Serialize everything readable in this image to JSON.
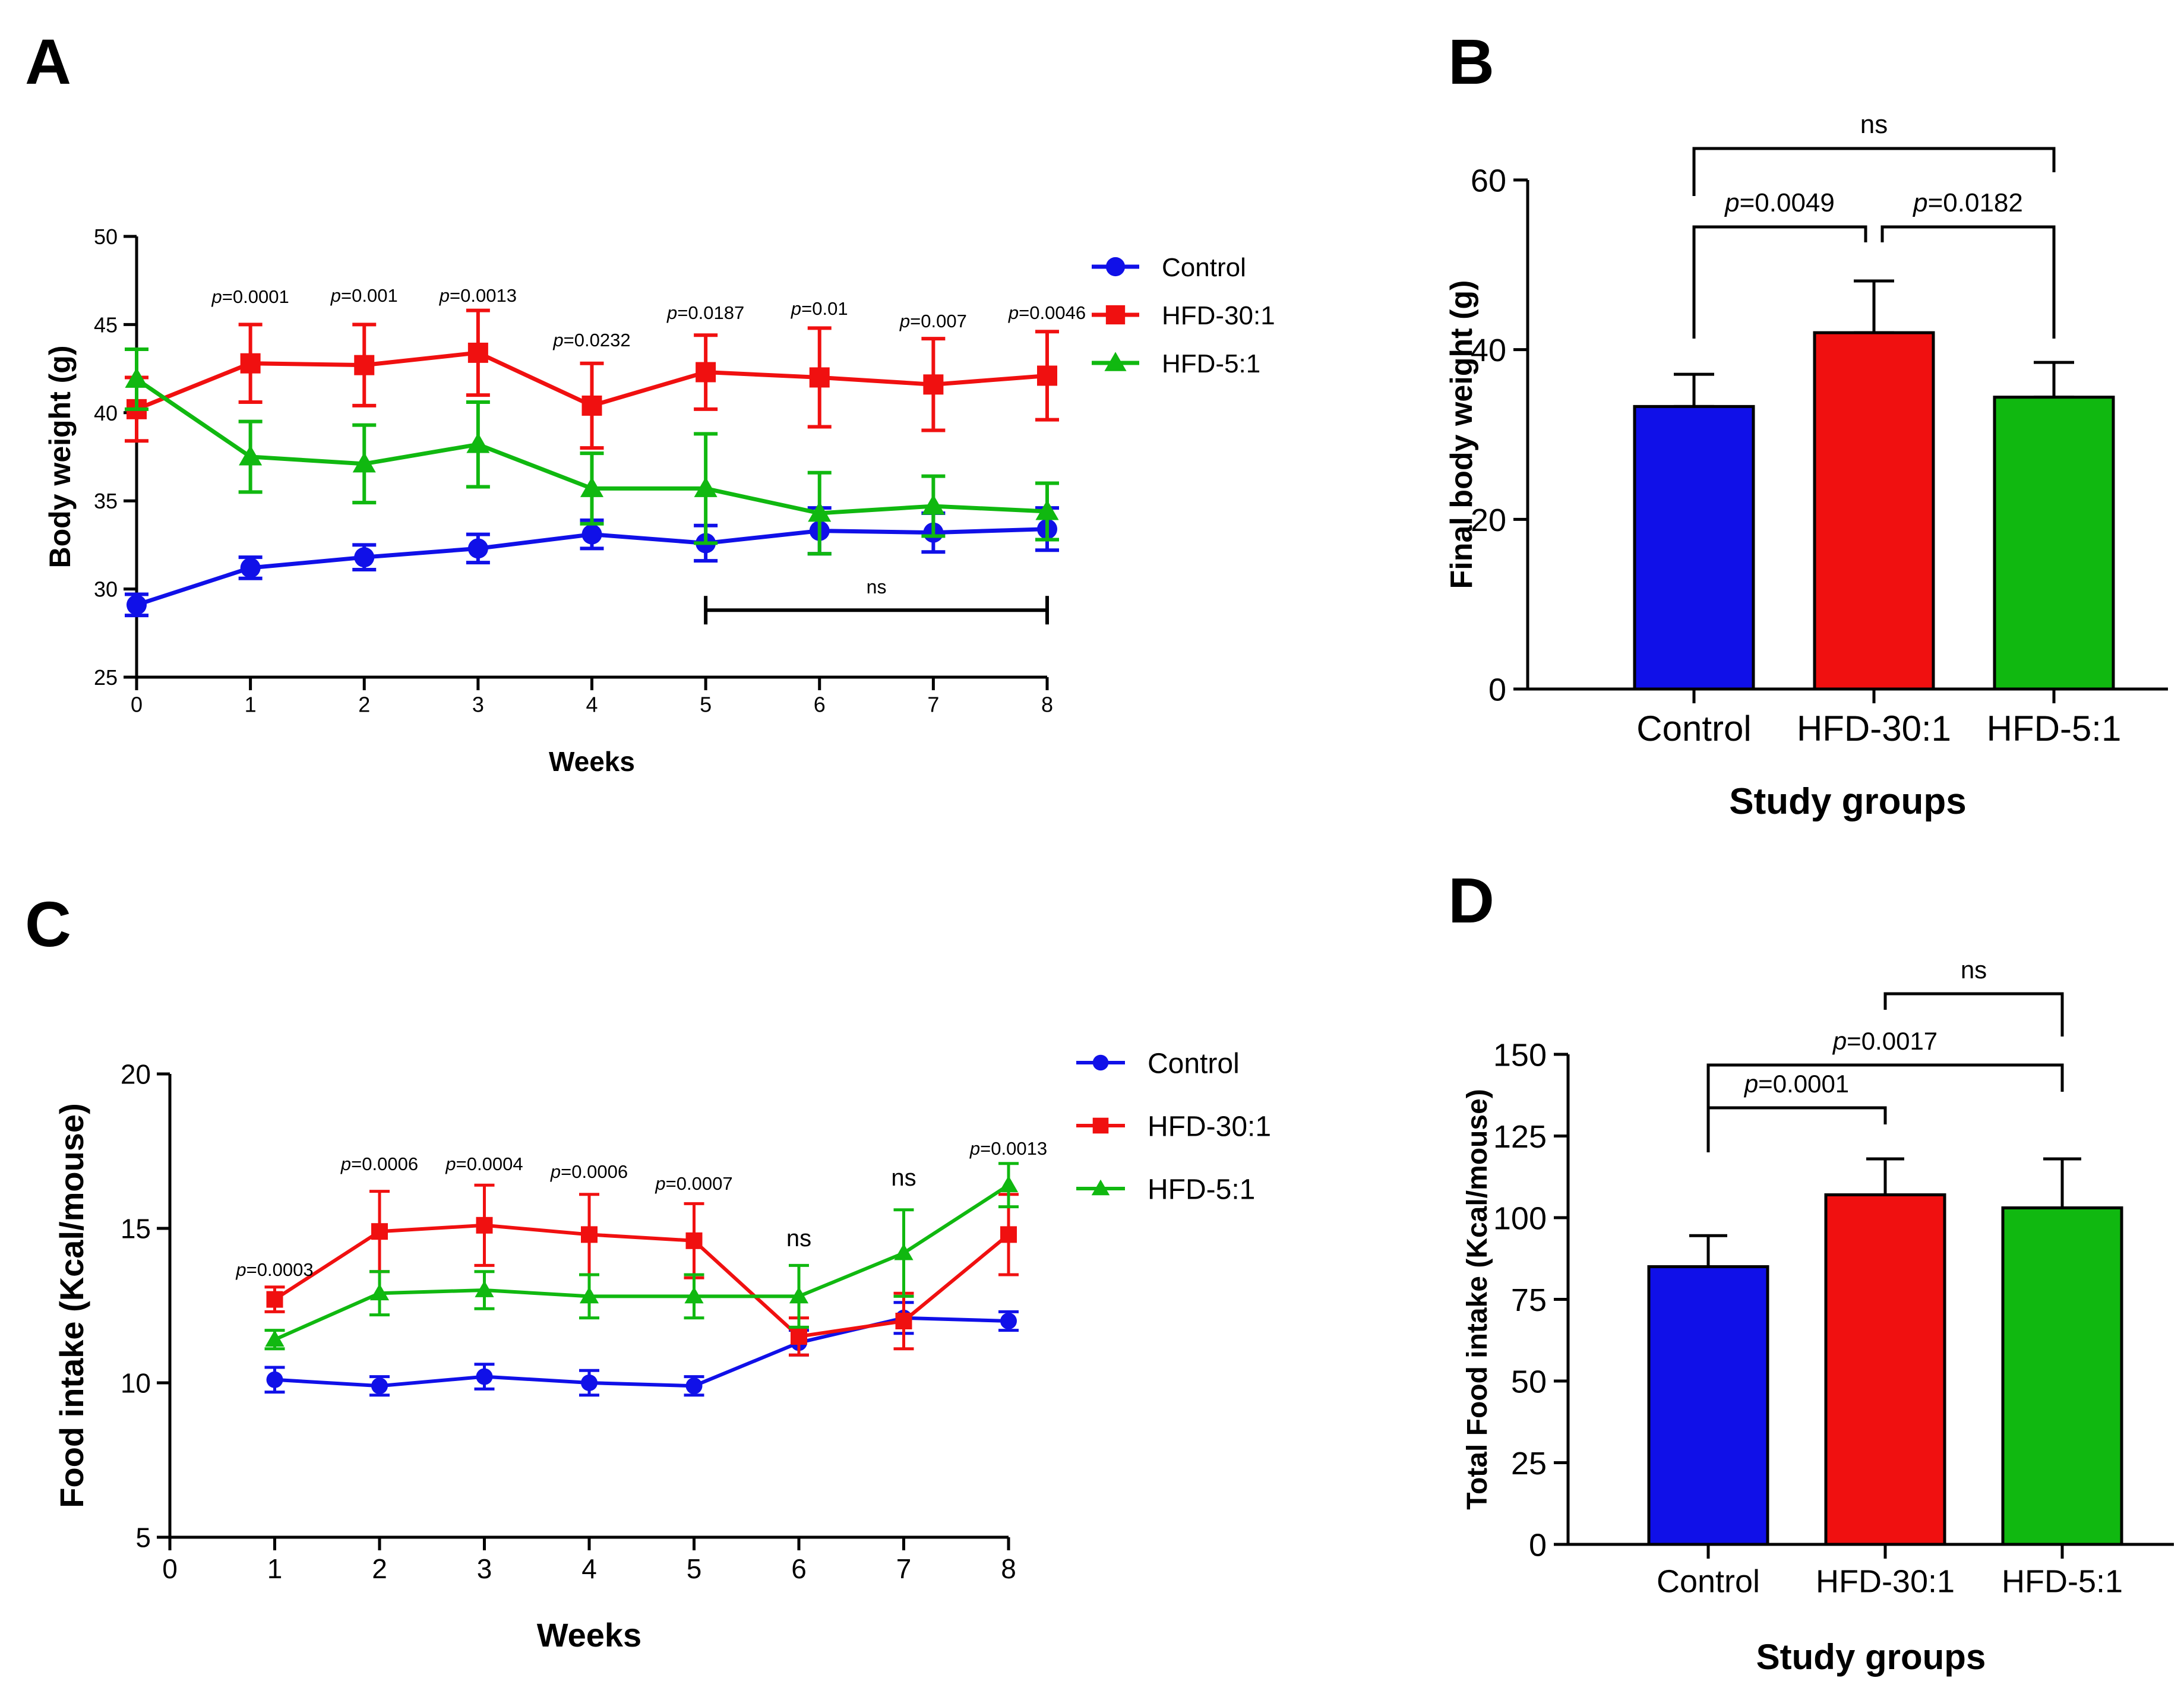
{
  "panel_labels": [
    "A",
    "B",
    "C",
    "D"
  ],
  "colors": {
    "control": "#1010e8",
    "hfd30": "#f01010",
    "hfd5": "#10b810",
    "axis": "#000000"
  },
  "chart_data": [
    {
      "panel": "A",
      "type": "line",
      "xlabel": "Weeks",
      "ylabel": "Body weight (g)",
      "xlim": [
        0,
        8
      ],
      "ylim": [
        25,
        50
      ],
      "xticks": [
        0,
        1,
        2,
        3,
        4,
        5,
        6,
        7,
        8
      ],
      "yticks": [
        25,
        30,
        35,
        40,
        45,
        50
      ],
      "legend": [
        "Control",
        "HFD-30:1",
        "HFD-5:1"
      ],
      "legend_position": "top-right",
      "x": [
        0,
        1,
        2,
        3,
        4,
        5,
        6,
        7,
        8
      ],
      "series": [
        {
          "name": "Control",
          "marker": "circle",
          "color": "#1010e8",
          "values": [
            29.1,
            31.2,
            31.8,
            32.3,
            33.1,
            32.6,
            33.3,
            33.2,
            33.4
          ],
          "errors": [
            0.6,
            0.6,
            0.7,
            0.8,
            0.8,
            1.0,
            1.3,
            1.1,
            1.2
          ]
        },
        {
          "name": "HFD-30:1",
          "marker": "square",
          "color": "#f01010",
          "values": [
            40.2,
            42.8,
            42.7,
            43.4,
            40.4,
            42.3,
            42.0,
            41.6,
            42.1
          ],
          "errors": [
            1.8,
            2.2,
            2.3,
            2.4,
            2.4,
            2.1,
            2.8,
            2.6,
            2.5
          ]
        },
        {
          "name": "HFD-5:1",
          "marker": "triangle",
          "color": "#10b810",
          "values": [
            41.9,
            37.5,
            37.1,
            38.2,
            35.7,
            35.7,
            34.3,
            34.7,
            34.4
          ],
          "errors": [
            1.7,
            2.0,
            2.2,
            2.4,
            2.0,
            3.1,
            2.3,
            1.7,
            1.6
          ]
        }
      ],
      "annotations": [
        {
          "x": 1,
          "text": "=0.0001"
        },
        {
          "x": 2,
          "text": "=0.001"
        },
        {
          "x": 3,
          "text": "=0.0013"
        },
        {
          "x": 4,
          "text": "=0.0232"
        },
        {
          "x": 5,
          "text": "=0.0187"
        },
        {
          "x": 6,
          "text": "=0.01"
        },
        {
          "x": 7,
          "text": "=0.007"
        },
        {
          "x": 8,
          "text": "=0.0046"
        }
      ],
      "bracket": {
        "x1": 5,
        "x2": 8,
        "y": 28.8,
        "text": "ns"
      }
    },
    {
      "panel": "B",
      "type": "bar",
      "xlabel": "Study groups",
      "ylabel": "Final body weight (g)",
      "ylim": [
        0,
        60
      ],
      "yticks": [
        0,
        20,
        40,
        60
      ],
      "categories": [
        "Control",
        "HFD-30:1",
        "HFD-5:1"
      ],
      "values": [
        33.3,
        42.0,
        34.4
      ],
      "errors": [
        3.8,
        6.1,
        4.1
      ],
      "comparisons": [
        {
          "from": 0,
          "to": 1,
          "text": "=0.0049",
          "italic_p": true
        },
        {
          "from": 1,
          "to": 2,
          "text": "=0.0182",
          "italic_p": true
        },
        {
          "from": 0,
          "to": 2,
          "text": "ns",
          "italic_p": false
        }
      ]
    },
    {
      "panel": "C",
      "type": "line",
      "xlabel": "Weeks",
      "ylabel": "Food intake (Kcal/mouse)",
      "xlim": [
        0,
        8
      ],
      "ylim": [
        5,
        20
      ],
      "xticks": [
        0,
        1,
        2,
        3,
        4,
        5,
        6,
        7,
        8
      ],
      "yticks": [
        5,
        10,
        15,
        20
      ],
      "legend": [
        "Control",
        "HFD-30:1",
        "HFD-5:1"
      ],
      "legend_position": "top-right",
      "x": [
        1,
        2,
        3,
        4,
        5,
        6,
        7,
        8
      ],
      "series": [
        {
          "name": "Control",
          "marker": "circle",
          "color": "#1010e8",
          "values": [
            10.1,
            9.9,
            10.2,
            10.0,
            9.9,
            11.3,
            12.1,
            12.0
          ],
          "errors": [
            0.4,
            0.3,
            0.4,
            0.4,
            0.3,
            0.4,
            0.5,
            0.3
          ]
        },
        {
          "name": "HFD-30:1",
          "marker": "square",
          "color": "#f01010",
          "values": [
            12.7,
            14.9,
            15.1,
            14.8,
            14.6,
            11.5,
            12.0,
            14.8
          ],
          "errors": [
            0.4,
            1.3,
            1.3,
            1.3,
            1.2,
            0.6,
            0.9,
            1.3
          ]
        },
        {
          "name": "HFD-5:1",
          "marker": "triangle",
          "color": "#10b810",
          "values": [
            11.4,
            12.9,
            13.0,
            12.8,
            12.8,
            12.8,
            14.2,
            16.4
          ],
          "errors": [
            0.3,
            0.7,
            0.6,
            0.7,
            0.7,
            1.0,
            1.4,
            0.7
          ]
        }
      ],
      "annotations": [
        {
          "x": 1,
          "text": "=0.0003",
          "italic_p": true
        },
        {
          "x": 2,
          "text": "=0.0006",
          "italic_p": true
        },
        {
          "x": 3,
          "text": "=0.0004",
          "italic_p": true
        },
        {
          "x": 4,
          "text": "=0.0006",
          "italic_p": true
        },
        {
          "x": 5,
          "text": "=0.0007",
          "italic_p": true
        },
        {
          "x": 6,
          "text": "ns",
          "italic_p": false
        },
        {
          "x": 7,
          "text": "ns",
          "italic_p": false
        },
        {
          "x": 8,
          "text": "=0.0013",
          "italic_p": true
        }
      ]
    },
    {
      "panel": "D",
      "type": "bar",
      "xlabel": "Study groups",
      "ylabel": "Total Food intake (Kcal/mouse)",
      "ylim": [
        0,
        150
      ],
      "yticks": [
        0,
        25,
        50,
        75,
        100,
        125,
        150
      ],
      "categories": [
        "Control",
        "HFD-30:1",
        "HFD-5:1"
      ],
      "values": [
        85,
        107,
        103
      ],
      "errors": [
        9.5,
        11,
        15
      ],
      "comparisons": [
        {
          "from": 0,
          "to": 1,
          "text": "=0.0001",
          "italic_p": true
        },
        {
          "from": 0,
          "to": 2,
          "text": "=0.0017",
          "italic_p": true
        },
        {
          "from": 1,
          "to": 2,
          "text": "ns",
          "italic_p": false
        }
      ]
    }
  ]
}
